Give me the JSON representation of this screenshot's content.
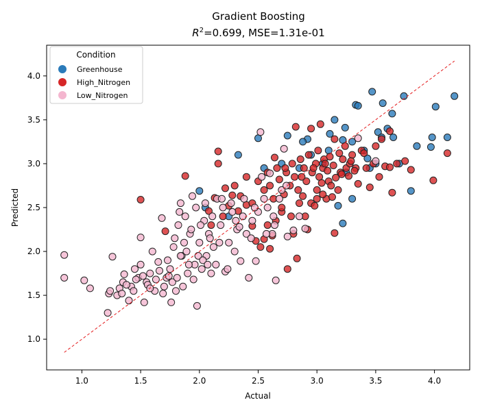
{
  "chart_data": {
    "type": "scatter",
    "title": "Gradient Boosting",
    "subtitle_prefix": "R",
    "subtitle_sup": "2",
    "subtitle_rest": "=0.699, MSE=1.31e-01",
    "xlabel": "Actual",
    "ylabel": "Predicted",
    "xlim": [
      0.7,
      4.3
    ],
    "ylim": [
      0.65,
      4.35
    ],
    "xticks": [
      "1.0",
      "1.5",
      "2.0",
      "2.5",
      "3.0",
      "3.5",
      "4.0"
    ],
    "yticks": [
      "1.0",
      "1.5",
      "2.0",
      "2.5",
      "3.0",
      "3.5",
      "4.0"
    ],
    "grid": false,
    "legend": {
      "title": "Condition",
      "position": "top-left"
    },
    "reference_line": {
      "from": [
        0.85,
        0.85
      ],
      "to": [
        4.17,
        4.17
      ],
      "style": "dashed",
      "color": "#e41a1c"
    },
    "series": [
      {
        "name": "Greenhouse",
        "color": "#2b7bba",
        "points": [
          [
            2.75,
            3.32
          ],
          [
            2.92,
            3.28
          ],
          [
            3.22,
            3.27
          ],
          [
            3.43,
            3.06
          ],
          [
            3.47,
            3.82
          ],
          [
            3.56,
            3.69
          ],
          [
            3.11,
            3.34
          ],
          [
            3.24,
            3.41
          ],
          [
            3.33,
            3.67
          ],
          [
            3.64,
            3.57
          ],
          [
            3.74,
            3.77
          ],
          [
            3.8,
            2.69
          ],
          [
            4.01,
            3.65
          ],
          [
            4.17,
            3.77
          ],
          [
            3.97,
            3.19
          ],
          [
            4.11,
            3.3
          ],
          [
            3.52,
            3.36
          ],
          [
            3.22,
            2.32
          ],
          [
            2.5,
            3.29
          ],
          [
            2.33,
            3.1
          ],
          [
            2.0,
            2.69
          ],
          [
            2.55,
            2.95
          ],
          [
            2.88,
            3.25
          ],
          [
            3.15,
            3.5
          ],
          [
            3.3,
            3.25
          ],
          [
            3.4,
            3.15
          ],
          [
            3.05,
            3.0
          ],
          [
            2.95,
            3.1
          ],
          [
            3.6,
            3.4
          ],
          [
            3.7,
            3.0
          ],
          [
            3.85,
            3.2
          ],
          [
            3.55,
            3.3
          ],
          [
            3.25,
            2.9
          ],
          [
            3.18,
            2.52
          ],
          [
            3.3,
            2.6
          ],
          [
            2.7,
            3.0
          ],
          [
            2.05,
            2.5
          ],
          [
            2.25,
            2.4
          ],
          [
            3.35,
            3.66
          ],
          [
            3.98,
            3.3
          ],
          [
            3.1,
            3.15
          ],
          [
            3.45,
            2.95
          ],
          [
            2.85,
            2.95
          ],
          [
            3.65,
            3.3
          ],
          [
            3.5,
            3.0
          ]
        ]
      },
      {
        "name": "High_Nitrogen",
        "color": "#d62728",
        "points": [
          [
            1.5,
            2.59
          ],
          [
            1.71,
            2.23
          ],
          [
            1.88,
            2.86
          ],
          [
            2.08,
            2.46
          ],
          [
            2.13,
            2.61
          ],
          [
            2.16,
            3.14
          ],
          [
            2.16,
            3.0
          ],
          [
            2.22,
            2.72
          ],
          [
            2.25,
            2.52
          ],
          [
            2.28,
            2.64
          ],
          [
            2.33,
            2.46
          ],
          [
            2.35,
            2.63
          ],
          [
            2.4,
            2.53
          ],
          [
            2.45,
            2.29
          ],
          [
            2.48,
            2.12
          ],
          [
            2.52,
            2.05
          ],
          [
            2.55,
            2.14
          ],
          [
            2.6,
            2.03
          ],
          [
            2.62,
            2.18
          ],
          [
            2.65,
            2.35
          ],
          [
            2.7,
            2.45
          ],
          [
            2.75,
            1.8
          ],
          [
            2.8,
            2.2
          ],
          [
            2.83,
            1.92
          ],
          [
            2.85,
            2.55
          ],
          [
            2.88,
            2.63
          ],
          [
            2.92,
            2.25
          ],
          [
            2.95,
            2.55
          ],
          [
            2.98,
            2.52
          ],
          [
            3.0,
            2.7
          ],
          [
            3.02,
            2.85
          ],
          [
            3.05,
            2.95
          ],
          [
            3.08,
            2.6
          ],
          [
            3.1,
            2.8
          ],
          [
            3.13,
            2.62
          ],
          [
            3.15,
            2.21
          ],
          [
            3.18,
            2.7
          ],
          [
            3.2,
            2.9
          ],
          [
            3.22,
            3.05
          ],
          [
            3.25,
            2.95
          ],
          [
            3.28,
            3.0
          ],
          [
            3.3,
            3.1
          ],
          [
            3.33,
            2.95
          ],
          [
            3.35,
            2.77
          ],
          [
            3.38,
            3.15
          ],
          [
            3.4,
            3.12
          ],
          [
            3.42,
            2.95
          ],
          [
            3.45,
            2.73
          ],
          [
            3.48,
            3.0
          ],
          [
            3.5,
            3.2
          ],
          [
            3.53,
            2.85
          ],
          [
            3.55,
            3.28
          ],
          [
            3.58,
            2.97
          ],
          [
            3.62,
            2.96
          ],
          [
            3.64,
            2.67
          ],
          [
            3.68,
            3.0
          ],
          [
            3.75,
            3.03
          ],
          [
            3.8,
            2.93
          ],
          [
            3.99,
            2.81
          ],
          [
            4.11,
            3.12
          ],
          [
            2.82,
            3.42
          ],
          [
            2.95,
            3.4
          ],
          [
            3.03,
            3.45
          ],
          [
            3.15,
            3.28
          ],
          [
            3.62,
            3.37
          ],
          [
            2.5,
            2.8
          ],
          [
            2.55,
            2.7
          ],
          [
            2.58,
            2.9
          ],
          [
            2.6,
            2.75
          ],
          [
            2.63,
            2.6
          ],
          [
            2.66,
            2.95
          ],
          [
            2.68,
            2.82
          ],
          [
            2.72,
            2.65
          ],
          [
            2.74,
            2.9
          ],
          [
            2.77,
            2.75
          ],
          [
            2.79,
            3.0
          ],
          [
            2.81,
            2.85
          ],
          [
            2.84,
            2.7
          ],
          [
            2.86,
            3.05
          ],
          [
            2.89,
            2.95
          ],
          [
            2.91,
            2.8
          ],
          [
            2.93,
            3.1
          ],
          [
            2.96,
            2.9
          ],
          [
            2.99,
            3.0
          ],
          [
            3.01,
            3.15
          ],
          [
            3.04,
            2.78
          ],
          [
            3.06,
            3.05
          ],
          [
            3.09,
            2.92
          ],
          [
            3.11,
            3.08
          ],
          [
            3.14,
            2.98
          ],
          [
            3.16,
            2.84
          ],
          [
            3.19,
            3.12
          ],
          [
            3.21,
            2.88
          ],
          [
            3.24,
            3.2
          ],
          [
            3.27,
            2.86
          ],
          [
            3.29,
            3.03
          ],
          [
            3.32,
            2.92
          ],
          [
            2.3,
            2.75
          ],
          [
            2.2,
            2.4
          ],
          [
            2.1,
            2.3
          ],
          [
            2.4,
            2.85
          ],
          [
            2.45,
            2.55
          ],
          [
            2.58,
            2.3
          ],
          [
            2.7,
            2.5
          ],
          [
            2.78,
            2.4
          ],
          [
            2.9,
            2.4
          ],
          [
            3.0,
            2.6
          ],
          [
            3.05,
            2.65
          ],
          [
            3.12,
            2.75
          ],
          [
            2.64,
            3.07
          ],
          [
            2.73,
            2.95
          ],
          [
            2.87,
            2.85
          ],
          [
            2.97,
            2.95
          ],
          [
            3.07,
            3.0
          ]
        ]
      },
      {
        "name": "Low_Nitrogen",
        "color": "#f4b6cf",
        "points": [
          [
            0.85,
            1.96
          ],
          [
            0.85,
            1.7
          ],
          [
            1.02,
            1.67
          ],
          [
            1.07,
            1.58
          ],
          [
            1.22,
            1.3
          ],
          [
            1.23,
            1.52
          ],
          [
            1.24,
            1.55
          ],
          [
            1.26,
            1.94
          ],
          [
            1.3,
            1.5
          ],
          [
            1.32,
            1.58
          ],
          [
            1.35,
            1.65
          ],
          [
            1.36,
            1.74
          ],
          [
            1.4,
            1.44
          ],
          [
            1.42,
            1.6
          ],
          [
            1.45,
            1.8
          ],
          [
            1.48,
            1.7
          ],
          [
            1.5,
            1.85
          ],
          [
            1.5,
            2.16
          ],
          [
            1.53,
            1.42
          ],
          [
            1.55,
            1.65
          ],
          [
            1.58,
            1.75
          ],
          [
            1.6,
            2.0
          ],
          [
            1.62,
            1.55
          ],
          [
            1.65,
            1.88
          ],
          [
            1.68,
            2.38
          ],
          [
            1.7,
            1.6
          ],
          [
            1.72,
            1.7
          ],
          [
            1.75,
            1.8
          ],
          [
            1.76,
            1.42
          ],
          [
            1.78,
            2.05
          ],
          [
            1.8,
            1.55
          ],
          [
            1.82,
            2.3
          ],
          [
            1.84,
            2.55
          ],
          [
            1.85,
            1.95
          ],
          [
            1.87,
            2.1
          ],
          [
            1.88,
            2.4
          ],
          [
            1.9,
            1.75
          ],
          [
            1.92,
            2.2
          ],
          [
            1.94,
            2.63
          ],
          [
            1.96,
            1.85
          ],
          [
            1.98,
            1.38
          ],
          [
            2.0,
            2.1
          ],
          [
            2.02,
            1.8
          ],
          [
            2.04,
            2.35
          ],
          [
            2.06,
            1.95
          ],
          [
            2.08,
            2.2
          ],
          [
            2.1,
            1.75
          ],
          [
            2.12,
            2.05
          ],
          [
            2.15,
            2.6
          ],
          [
            2.18,
            2.3
          ],
          [
            2.2,
            2.5
          ],
          [
            2.22,
            1.77
          ],
          [
            2.25,
            2.1
          ],
          [
            2.28,
            2.45
          ],
          [
            2.3,
            2.0
          ],
          [
            2.32,
            2.25
          ],
          [
            2.35,
            1.89
          ],
          [
            2.38,
            2.6
          ],
          [
            2.4,
            2.2
          ],
          [
            2.42,
            1.7
          ],
          [
            2.45,
            2.35
          ],
          [
            2.48,
            1.89
          ],
          [
            2.5,
            2.45
          ],
          [
            2.52,
            3.36
          ],
          [
            2.55,
            2.6
          ],
          [
            2.58,
            2.5
          ],
          [
            2.6,
            2.89
          ],
          [
            2.62,
            2.2
          ],
          [
            2.64,
            2.3
          ],
          [
            2.65,
            1.67
          ],
          [
            2.7,
            2.7
          ],
          [
            2.72,
            3.17
          ],
          [
            2.75,
            2.17
          ],
          [
            2.8,
            2.24
          ],
          [
            2.85,
            2.4
          ],
          [
            2.9,
            2.26
          ],
          [
            3.35,
            3.29
          ],
          [
            3.5,
            3.03
          ],
          [
            1.38,
            1.62
          ],
          [
            1.44,
            1.55
          ],
          [
            1.52,
            1.72
          ],
          [
            1.56,
            1.62
          ],
          [
            1.63,
            1.68
          ],
          [
            1.66,
            1.78
          ],
          [
            1.69,
            1.52
          ],
          [
            1.73,
            1.9
          ],
          [
            1.77,
            1.65
          ],
          [
            1.79,
            2.15
          ],
          [
            1.81,
            1.7
          ],
          [
            1.83,
            2.45
          ],
          [
            1.86,
            1.6
          ],
          [
            1.89,
            2.0
          ],
          [
            1.91,
            1.85
          ],
          [
            1.93,
            2.25
          ],
          [
            1.95,
            1.68
          ],
          [
            1.97,
            2.5
          ],
          [
            1.99,
            1.95
          ],
          [
            2.01,
            2.3
          ],
          [
            2.03,
            1.9
          ],
          [
            2.05,
            2.55
          ],
          [
            2.07,
            1.85
          ],
          [
            2.09,
            2.15
          ],
          [
            2.11,
            2.4
          ],
          [
            2.14,
            1.85
          ],
          [
            2.17,
            2.1
          ],
          [
            2.19,
            2.6
          ],
          [
            2.24,
            1.8
          ],
          [
            2.27,
            2.55
          ],
          [
            2.31,
            2.35
          ],
          [
            2.34,
            2.28
          ],
          [
            2.37,
            2.4
          ],
          [
            2.44,
            2.15
          ],
          [
            2.47,
            2.5
          ],
          [
            2.53,
            2.85
          ],
          [
            2.57,
            2.2
          ],
          [
            2.63,
            2.4
          ],
          [
            2.68,
            2.6
          ],
          [
            2.74,
            2.75
          ],
          [
            1.34,
            1.52
          ],
          [
            1.46,
            1.68
          ],
          [
            1.58,
            1.58
          ],
          [
            1.74,
            1.72
          ],
          [
            1.84,
            1.95
          ]
        ]
      }
    ]
  }
}
